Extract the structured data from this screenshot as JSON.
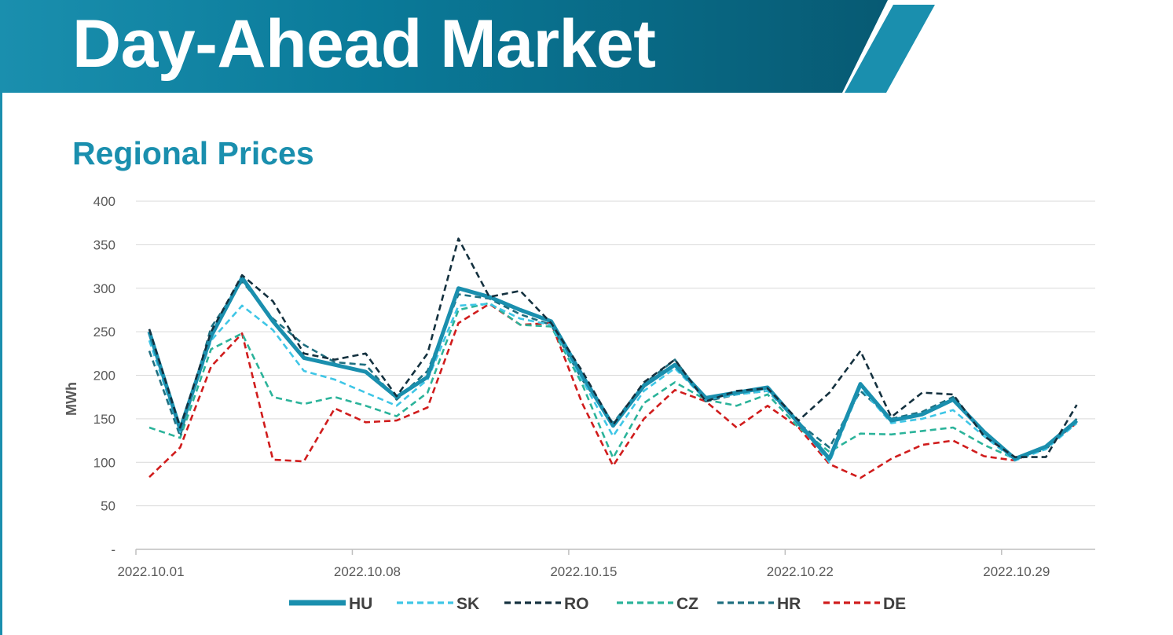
{
  "header": {
    "title": "Day-Ahead Market"
  },
  "section": {
    "title": "Regional Prices"
  },
  "colors": {
    "banner_dark": "#075a73",
    "banner_light": "#1a8fae",
    "HU": "#1a8fae",
    "SK": "#3fc6e6",
    "RO": "#14313f",
    "CZ": "#2bb39a",
    "HR": "#1f6f80",
    "DE": "#d01c1c",
    "grid": "#d9d9d9",
    "axis": "#bfbfbf"
  },
  "chart_data": {
    "type": "line",
    "title": "",
    "xlabel": "",
    "ylabel": "MWh",
    "ylim": [
      0,
      400
    ],
    "yticks": [
      {
        "value": 0,
        "label": "-"
      },
      {
        "value": 50,
        "label": "50"
      },
      {
        "value": 100,
        "label": "100"
      },
      {
        "value": 150,
        "label": "150"
      },
      {
        "value": 200,
        "label": "200"
      },
      {
        "value": 250,
        "label": "250"
      },
      {
        "value": 300,
        "label": "300"
      },
      {
        "value": 350,
        "label": "350"
      },
      {
        "value": 400,
        "label": "400"
      }
    ],
    "xticks": [
      "2022.10.01",
      "2022.10.08",
      "2022.10.15",
      "2022.10.22",
      "2022.10.29"
    ],
    "x": [
      "2022.10.01",
      "2022.10.02",
      "2022.10.03",
      "2022.10.04",
      "2022.10.05",
      "2022.10.06",
      "2022.10.07",
      "2022.10.08",
      "2022.10.09",
      "2022.10.10",
      "2022.10.11",
      "2022.10.12",
      "2022.10.13",
      "2022.10.14",
      "2022.10.15",
      "2022.10.16",
      "2022.10.17",
      "2022.10.18",
      "2022.10.19",
      "2022.10.20",
      "2022.10.21",
      "2022.10.22",
      "2022.10.23",
      "2022.10.24",
      "2022.10.25",
      "2022.10.26",
      "2022.10.27",
      "2022.10.28",
      "2022.10.29",
      "2022.10.30",
      "2022.10.31"
    ],
    "grid": true,
    "legend_position": "bottom",
    "series": [
      {
        "name": "HU",
        "style": "solid-thick",
        "values": [
          250,
          138,
          245,
          312,
          262,
          220,
          212,
          204,
          175,
          198,
          300,
          290,
          275,
          262,
          200,
          142,
          188,
          212,
          174,
          180,
          186,
          145,
          104,
          190,
          148,
          155,
          172,
          135,
          104,
          118,
          148
        ]
      },
      {
        "name": "SK",
        "style": "dashed",
        "values": [
          240,
          135,
          240,
          280,
          252,
          205,
          195,
          180,
          165,
          195,
          280,
          282,
          265,
          258,
          195,
          130,
          182,
          208,
          172,
          178,
          182,
          145,
          100,
          186,
          145,
          150,
          160,
          130,
          102,
          115,
          145
        ]
      },
      {
        "name": "RO",
        "style": "dashed",
        "values": [
          253,
          140,
          250,
          315,
          285,
          225,
          218,
          225,
          176,
          225,
          357,
          290,
          297,
          260,
          205,
          143,
          192,
          218,
          170,
          182,
          185,
          148,
          180,
          228,
          152,
          180,
          178,
          130,
          106,
          106,
          166
        ]
      },
      {
        "name": "CZ",
        "style": "dashed",
        "values": [
          140,
          128,
          230,
          248,
          175,
          167,
          175,
          165,
          153,
          180,
          275,
          283,
          258,
          256,
          190,
          105,
          168,
          192,
          172,
          165,
          178,
          140,
          112,
          133,
          132,
          136,
          140,
          120,
          104,
          117,
          148
        ]
      },
      {
        "name": "HR",
        "style": "dashed",
        "values": [
          228,
          130,
          255,
          308,
          265,
          235,
          215,
          212,
          172,
          205,
          293,
          288,
          270,
          258,
          195,
          145,
          190,
          218,
          170,
          178,
          182,
          145,
          117,
          182,
          150,
          158,
          175,
          135,
          105,
          115,
          150
        ]
      },
      {
        "name": "DE",
        "style": "dashed",
        "values": [
          83,
          117,
          210,
          248,
          103,
          101,
          162,
          146,
          148,
          163,
          260,
          282,
          258,
          260,
          168,
          96,
          150,
          183,
          170,
          140,
          165,
          140,
          98,
          82,
          104,
          120,
          125,
          107,
          102,
          118,
          145
        ]
      }
    ]
  }
}
